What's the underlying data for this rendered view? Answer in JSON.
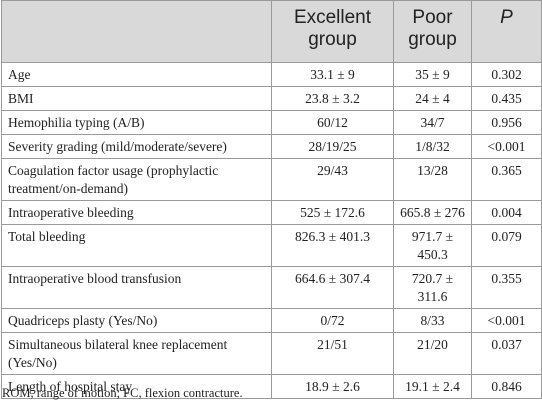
{
  "table": {
    "headers": [
      "",
      "Excellent group",
      "Poor group",
      "P"
    ],
    "rows": [
      [
        "Age",
        "33.1 ± 9",
        "35 ± 9",
        "0.302"
      ],
      [
        "BMI",
        "23.8 ± 3.2",
        "24 ± 4",
        "0.435"
      ],
      [
        "Hemophilia typing (A/B)",
        "60/12",
        "34/7",
        "0.956"
      ],
      [
        "Severity grading (mild/moderate/severe)",
        "28/19/25",
        "1/8/32",
        "<0.001"
      ],
      [
        "Coagulation factor usage (prophylactic treatment/on-demand)",
        "29/43",
        "13/28",
        "0.365"
      ],
      [
        "Intraoperative bleeding",
        "525 ± 172.6",
        "665.8 ± 276",
        "0.004"
      ],
      [
        "Total bleeding",
        "826.3 ± 401.3",
        "971.7 ± 450.3",
        "0.079"
      ],
      [
        "Intraoperative blood transfusion",
        "664.6 ± 307.4",
        "720.7 ± 311.6",
        "0.355"
      ],
      [
        "Quadriceps plasty (Yes/No)",
        "0/72",
        "8/33",
        "<0.001"
      ],
      [
        "Simultaneous bilateral knee replacement (Yes/No)",
        "21/51",
        "21/20",
        "0.037"
      ],
      [
        "Length of hospital stay",
        "18.9 ± 2.6",
        "19.1 ± 2.4",
        "0.846"
      ]
    ]
  },
  "footnote": "ROM, range of motion; FC, flexion contracture."
}
